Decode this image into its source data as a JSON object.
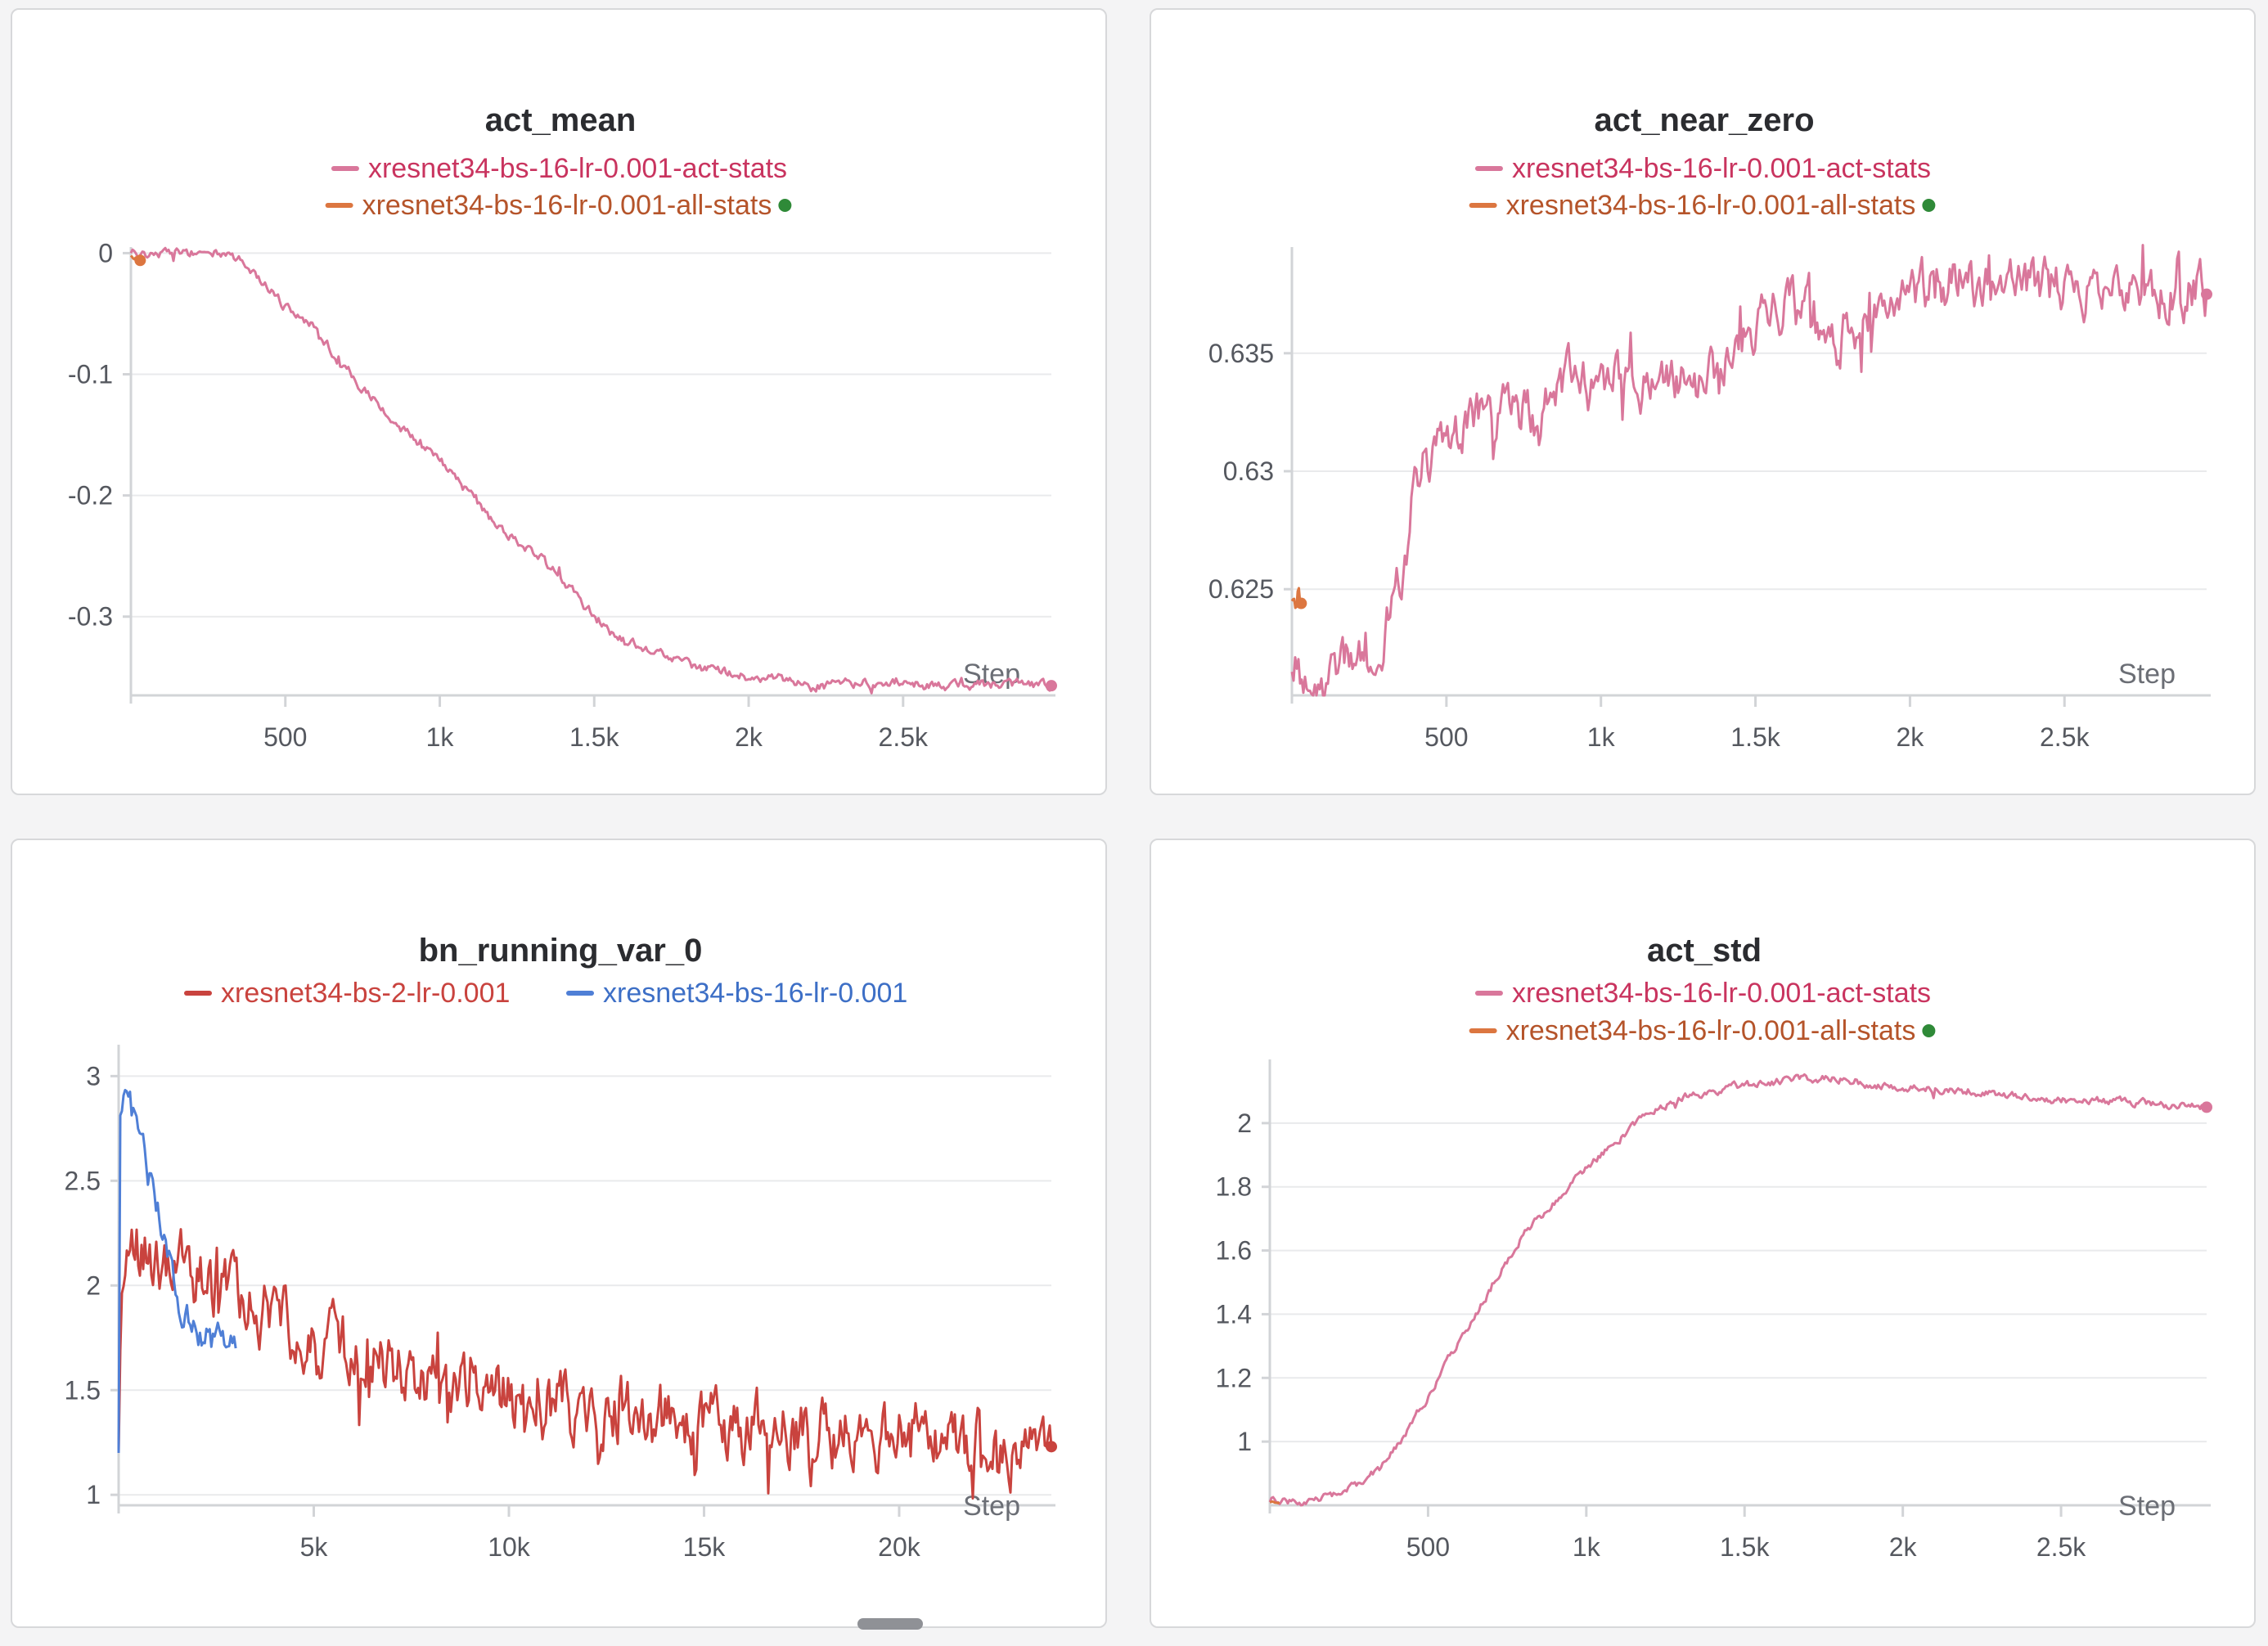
{
  "colors": {
    "act_stats": "#d9779b",
    "act_stats_text": "#c9345f",
    "all_stats": "#dc7640",
    "all_stats_text": "#b5542a",
    "status_dot": "#2f8a38",
    "bs2": "#c9433e",
    "bs2_text": "#c9433e",
    "bs16": "#4f7fd6",
    "bs16_text": "#3d6fc6"
  },
  "chart_data": [
    {
      "id": "act_mean",
      "type": "line",
      "title": "act_mean",
      "xlabel": "Step",
      "ylabel": "",
      "xlim": [
        0,
        2980
      ],
      "ylim": [
        -0.365,
        0.005
      ],
      "xticks": [
        500,
        1000,
        1500,
        2000,
        2500
      ],
      "xtick_labels": [
        "500",
        "1k",
        "1.5k",
        "2k",
        "2.5k"
      ],
      "yticks": [
        0,
        -0.1,
        -0.2,
        -0.3
      ],
      "ytick_labels": [
        "0",
        "-0.1",
        "-0.2",
        "-0.3"
      ],
      "grid": true,
      "legend": "top-center",
      "series": [
        {
          "name": "xresnet34-bs-16-lr-0.001-act-stats",
          "color_key": "act_stats",
          "text_key": "act_stats_text",
          "noise": 0.004,
          "end_marker": true,
          "x": [
            0,
            150,
            300,
            380,
            500,
            600,
            700,
            800,
            900,
            1000,
            1100,
            1200,
            1300,
            1400,
            1500,
            1600,
            1700,
            1800,
            1900,
            2000,
            2100,
            2200,
            2400,
            2600,
            2800,
            2980
          ],
          "y": [
            0,
            0,
            0,
            -0.01,
            -0.045,
            -0.06,
            -0.1,
            -0.125,
            -0.15,
            -0.17,
            -0.2,
            -0.23,
            -0.245,
            -0.27,
            -0.3,
            -0.32,
            -0.33,
            -0.34,
            -0.345,
            -0.35,
            -0.352,
            -0.358,
            -0.355,
            -0.357,
            -0.356,
            -0.357
          ]
        },
        {
          "name": "xresnet34-bs-16-lr-0.001-all-stats",
          "color_key": "all_stats",
          "text_key": "all_stats_text",
          "status_dot": true,
          "noise": 0.002,
          "end_marker": true,
          "x": [
            0,
            15,
            30
          ],
          "y": [
            -0.002,
            -0.004,
            -0.006
          ]
        }
      ]
    },
    {
      "id": "act_near_zero",
      "type": "line",
      "title": "act_near_zero",
      "xlabel": "Step",
      "ylabel": "",
      "xlim": [
        0,
        2960
      ],
      "ylim": [
        0.6205,
        0.6395
      ],
      "xticks": [
        500,
        1000,
        1500,
        2000,
        2500
      ],
      "xtick_labels": [
        "500",
        "1k",
        "1.5k",
        "2k",
        "2.5k"
      ],
      "yticks": [
        0.635,
        0.63,
        0.625
      ],
      "ytick_labels": [
        "0.635",
        "0.63",
        "0.625"
      ],
      "grid": true,
      "legend": "top-center",
      "series": [
        {
          "name": "xresnet34-bs-16-lr-0.001-act-stats",
          "color_key": "act_stats",
          "text_key": "act_stats_text",
          "noise": 0.0011,
          "end_marker": true,
          "x": [
            0,
            100,
            200,
            280,
            350,
            400,
            450,
            500,
            600,
            700,
            800,
            900,
            1000,
            1100,
            1200,
            1300,
            1400,
            1500,
            1600,
            1700,
            1800,
            1900,
            2000,
            2100,
            2200,
            2400,
            2600,
            2800,
            2960
          ],
          "y": [
            0.6215,
            0.6215,
            0.622,
            0.6225,
            0.625,
            0.6295,
            0.6305,
            0.6315,
            0.632,
            0.633,
            0.632,
            0.634,
            0.6335,
            0.6335,
            0.6335,
            0.6335,
            0.6345,
            0.636,
            0.637,
            0.6365,
            0.6355,
            0.6365,
            0.6375,
            0.638,
            0.638,
            0.6378,
            0.6375,
            0.6377,
            0.6375
          ]
        },
        {
          "name": "xresnet34-bs-16-lr-0.001-all-stats",
          "color_key": "all_stats",
          "text_key": "all_stats_text",
          "status_dot": true,
          "noise": 0.0007,
          "end_marker": true,
          "x": [
            0,
            15,
            30
          ],
          "y": [
            0.6245,
            0.6242,
            0.6244
          ]
        }
      ]
    },
    {
      "id": "bn_running_var_0",
      "type": "line",
      "title": "bn_running_var_0",
      "xlabel": "Step",
      "ylabel": "",
      "xlim": [
        0,
        23900
      ],
      "ylim": [
        0.95,
        3.15
      ],
      "xticks": [
        5000,
        10000,
        15000,
        20000
      ],
      "xtick_labels": [
        "5k",
        "10k",
        "15k",
        "20k"
      ],
      "yticks": [
        3,
        2.5,
        2,
        1.5,
        1
      ],
      "ytick_labels": [
        "3",
        "2.5",
        "2",
        "1.5",
        "1"
      ],
      "grid": true,
      "legend": "top-center-row",
      "series": [
        {
          "name": "xresnet34-bs-2-lr-0.001",
          "color_key": "bs2",
          "text_key": "bs2_text",
          "noise": 0.16,
          "end_marker": true,
          "x": [
            0,
            60,
            300,
            1000,
            2000,
            3000,
            4000,
            5000,
            7000,
            9000,
            11000,
            13000,
            15000,
            17000,
            19000,
            21000,
            23000,
            23900
          ],
          "y": [
            1.2,
            2.0,
            2.2,
            2.1,
            2.05,
            1.9,
            1.85,
            1.75,
            1.6,
            1.5,
            1.42,
            1.38,
            1.33,
            1.3,
            1.28,
            1.26,
            1.24,
            1.23
          ]
        },
        {
          "name": "xresnet34-bs-16-lr-0.001",
          "color_key": "bs16",
          "text_key": "bs16_text",
          "noise": 0.08,
          "end_marker": false,
          "x": [
            0,
            40,
            150,
            400,
            700,
            1000,
            1300,
            1600,
            2000,
            2500,
            3000
          ],
          "y": [
            1.2,
            2.8,
            3.0,
            2.8,
            2.6,
            2.35,
            2.1,
            1.9,
            1.78,
            1.72,
            1.7
          ]
        }
      ]
    },
    {
      "id": "act_std",
      "type": "line",
      "title": "act_std",
      "xlabel": "Step",
      "ylabel": "",
      "xlim": [
        0,
        2960
      ],
      "ylim": [
        0.8,
        2.2
      ],
      "xticks": [
        500,
        1000,
        1500,
        2000,
        2500
      ],
      "xtick_labels": [
        "500",
        "1k",
        "1.5k",
        "2k",
        "2.5k"
      ],
      "yticks": [
        2,
        1.8,
        1.6,
        1.4,
        1.2,
        1
      ],
      "ytick_labels": [
        "2",
        "1.8",
        "1.6",
        "1.4",
        "1.2",
        "1"
      ],
      "grid": true,
      "legend": "top-center",
      "series": [
        {
          "name": "xresnet34-bs-16-lr-0.001-act-stats",
          "color_key": "act_stats",
          "text_key": "act_stats_text",
          "noise": 0.012,
          "end_marker": true,
          "x": [
            0,
            100,
            200,
            300,
            400,
            500,
            600,
            700,
            800,
            900,
            1000,
            1100,
            1200,
            1300,
            1400,
            1500,
            1600,
            1700,
            1800,
            1900,
            2000,
            2200,
            2400,
            2600,
            2800,
            2960
          ],
          "y": [
            0.81,
            0.81,
            0.83,
            0.87,
            0.98,
            1.14,
            1.32,
            1.48,
            1.65,
            1.75,
            1.86,
            1.95,
            2.03,
            2.08,
            2.1,
            2.12,
            2.13,
            2.14,
            2.14,
            2.12,
            2.11,
            2.1,
            2.08,
            2.07,
            2.06,
            2.05
          ]
        },
        {
          "name": "xresnet34-bs-16-lr-0.001-all-stats",
          "color_key": "all_stats",
          "text_key": "all_stats_text",
          "status_dot": true,
          "noise": 0.004,
          "end_marker": false,
          "x": [
            0,
            15,
            30
          ],
          "y": [
            0.81,
            0.812,
            0.81
          ]
        }
      ]
    }
  ]
}
